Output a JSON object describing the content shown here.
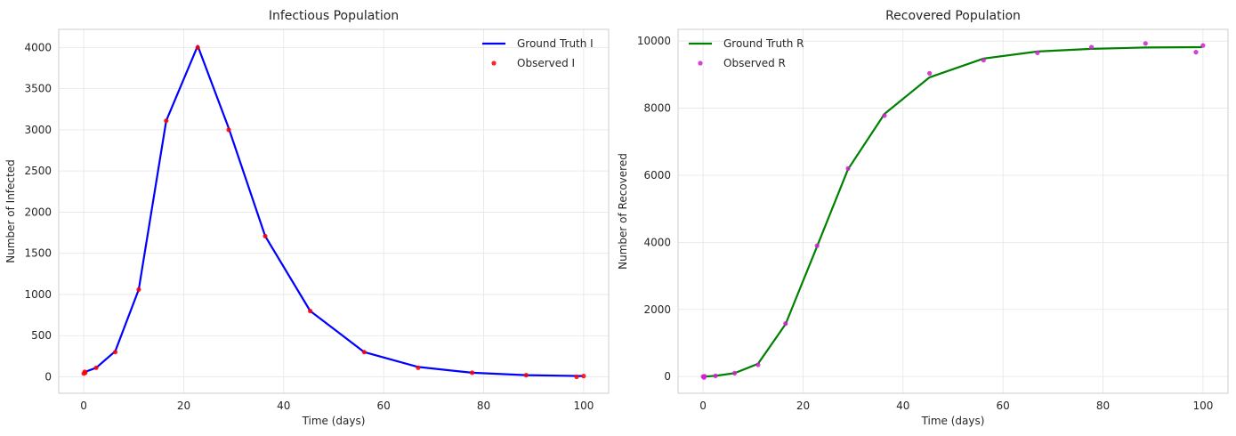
{
  "chart_data": [
    {
      "type": "line",
      "title": "Infectious Population",
      "xlabel": "Time (days)",
      "ylabel": "Number of Infected",
      "xlim": [
        -5,
        105
      ],
      "ylim": [
        -200,
        4220
      ],
      "xticks": [
        0,
        20,
        40,
        60,
        80,
        100
      ],
      "yticks": [
        0,
        500,
        1000,
        1500,
        2000,
        2500,
        3000,
        3500,
        4000
      ],
      "grid": true,
      "legend_position": "top-right",
      "series": [
        {
          "name": "Ground Truth I",
          "kind": "line",
          "color": "#0000ff",
          "x": [
            0,
            0.3,
            2.5,
            6.3,
            11,
            16.5,
            22.8,
            29,
            36.3,
            45.3,
            56.1,
            66.9,
            77.7,
            88.5,
            99.8
          ],
          "y": [
            50,
            60,
            110,
            310,
            1060,
            3110,
            4020,
            3020,
            1710,
            800,
            300,
            120,
            50,
            20,
            10
          ]
        },
        {
          "name": "Observed I",
          "kind": "scatter",
          "color": "#ff0000",
          "x": [
            0,
            0.2,
            0.3,
            2.5,
            6.3,
            11,
            16.5,
            22.8,
            29,
            36.3,
            45.3,
            56.1,
            66.9,
            77.7,
            88.5,
            98.6,
            100
          ],
          "y": [
            40,
            60,
            50,
            110,
            300,
            1060,
            3110,
            4000,
            3000,
            1710,
            800,
            300,
            110,
            50,
            20,
            0,
            10
          ]
        }
      ]
    },
    {
      "type": "line",
      "title": "Recovered Population",
      "xlabel": "Time (days)",
      "ylabel": "Number of Recovered",
      "xlim": [
        -5,
        105
      ],
      "ylim": [
        -500,
        10350
      ],
      "xticks": [
        0,
        20,
        40,
        60,
        80,
        100
      ],
      "yticks": [
        0,
        2000,
        4000,
        6000,
        8000,
        10000
      ],
      "grid": true,
      "legend_position": "top-left",
      "series": [
        {
          "name": "Ground Truth R",
          "kind": "line",
          "color": "#008000",
          "x": [
            0,
            0.3,
            2.5,
            6.3,
            11,
            16.5,
            22.8,
            29,
            36.3,
            45.3,
            56.1,
            66.9,
            77.7,
            88.5,
            99.8
          ],
          "y": [
            0,
            0,
            20,
            100,
            380,
            1560,
            3880,
            6180,
            7830,
            8920,
            9480,
            9690,
            9770,
            9810,
            9820
          ]
        },
        {
          "name": "Observed R",
          "kind": "scatter",
          "color": "#cc22cc",
          "x": [
            0,
            0.2,
            0.3,
            2.5,
            6.3,
            11,
            16.5,
            22.8,
            29,
            36.3,
            45.3,
            56.1,
            66.9,
            77.7,
            88.5,
            98.6,
            100
          ],
          "y": [
            0,
            -30,
            10,
            20,
            100,
            350,
            1580,
            3900,
            6200,
            7780,
            9040,
            9430,
            9650,
            9820,
            9930,
            9670,
            9870
          ]
        }
      ]
    }
  ]
}
